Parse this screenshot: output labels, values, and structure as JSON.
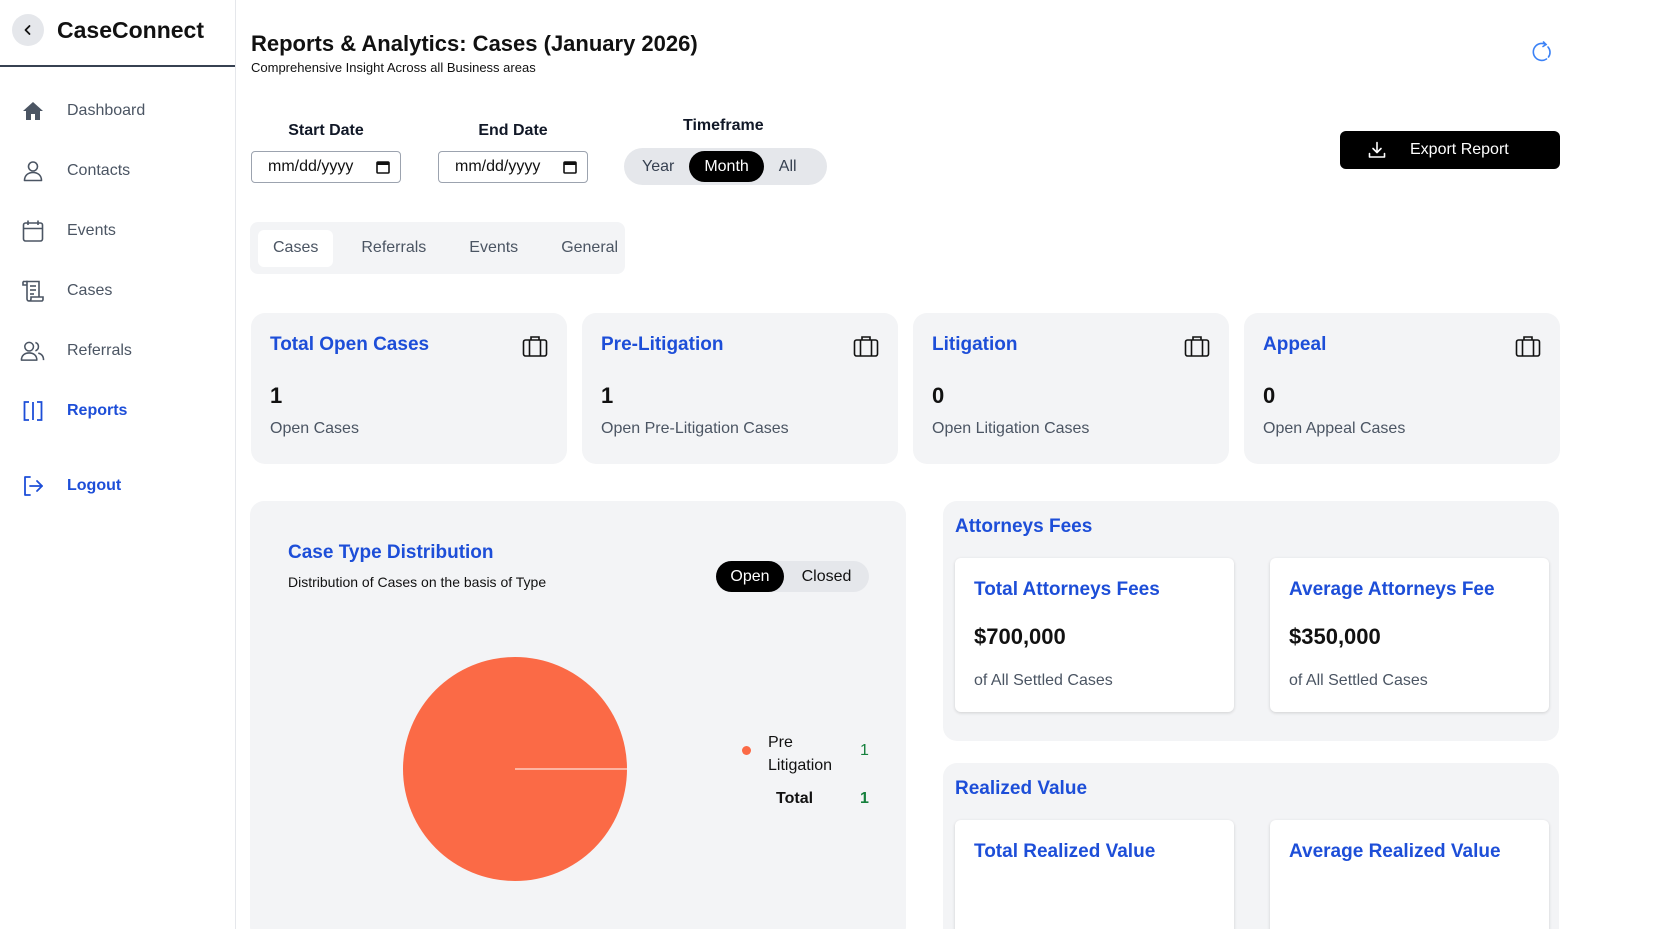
{
  "sidebar": {
    "brand": "CaseConnect",
    "items": [
      {
        "label": "Dashboard",
        "icon": "home-icon"
      },
      {
        "label": "Contacts",
        "icon": "user-icon"
      },
      {
        "label": "Events",
        "icon": "calendar-icon"
      },
      {
        "label": "Cases",
        "icon": "scroll-icon"
      },
      {
        "label": "Referrals",
        "icon": "users-icon"
      },
      {
        "label": "Reports",
        "icon": "reports-icon"
      }
    ],
    "logout": "Logout"
  },
  "header": {
    "title": "Reports & Analytics: Cases (January 2026)",
    "subtitle": "Comprehensive Insight Across all Business areas"
  },
  "filters": {
    "start_label": "Start Date",
    "start_placeholder": "mm/dd/yyyy",
    "end_label": "End Date",
    "end_placeholder": "mm/dd/yyyy",
    "timeframe_label": "Timeframe",
    "timeframe_options": [
      "Year",
      "Month",
      "All"
    ],
    "timeframe_selected": "Month"
  },
  "export_label": "Export Report",
  "tabs": [
    "Cases",
    "Referrals",
    "Events",
    "General"
  ],
  "active_tab": "Cases",
  "stats": [
    {
      "title": "Total Open Cases",
      "value": "1",
      "desc": "Open Cases"
    },
    {
      "title": "Pre-Litigation",
      "value": "1",
      "desc": "Open Pre-Litigation Cases"
    },
    {
      "title": "Litigation",
      "value": "0",
      "desc": "Open Litigation Cases"
    },
    {
      "title": "Appeal",
      "value": "0",
      "desc": "Open Appeal Cases"
    }
  ],
  "distribution": {
    "title": "Case Type Distribution",
    "subtitle": "Distribution of Cases on the basis of Type",
    "toggle": [
      "Open",
      "Closed"
    ],
    "toggle_selected": "Open",
    "total_label": "Total",
    "total_value": "1"
  },
  "chart_data": {
    "type": "pie",
    "categories": [
      "Pre Litigation"
    ],
    "values": [
      1
    ],
    "colors": [
      "#fb6a46"
    ]
  },
  "attorneys_fees": {
    "title": "Attorneys Fees",
    "cards": [
      {
        "title": "Total Attorneys Fees",
        "value": "$700,000",
        "desc": "of All Settled Cases"
      },
      {
        "title": "Average Attorneys Fee",
        "value": "$350,000",
        "desc": "of All Settled Cases"
      }
    ]
  },
  "realized_value": {
    "title": "Realized Value",
    "cards": [
      {
        "title": "Total Realized Value"
      },
      {
        "title": "Average Realized Value"
      }
    ]
  },
  "colors": {
    "accent": "#1d4ed8",
    "pie": "#fb6a46",
    "positive": "#15803d"
  }
}
